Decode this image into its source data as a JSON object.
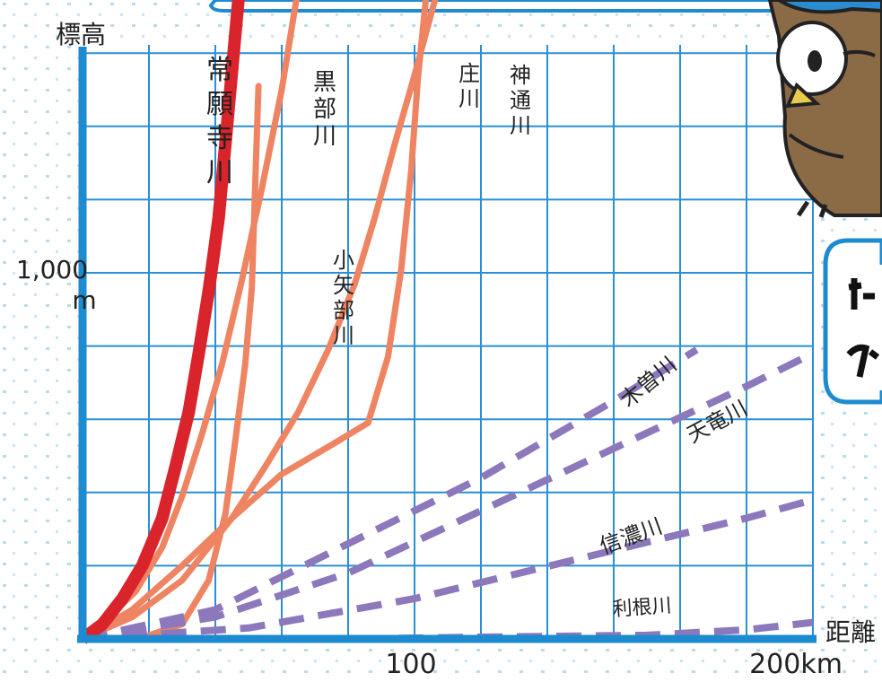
{
  "chart_data": {
    "type": "line",
    "ylabel": "標高",
    "xlabel": "距離",
    "xlim": [
      0,
      220
    ],
    "ylim": [
      0,
      2000
    ],
    "x_ticks": [
      {
        "value": 100,
        "label": "100"
      },
      {
        "value": 200,
        "label": "200km"
      }
    ],
    "y_ticks": [
      {
        "value": 1000,
        "label": "1,000",
        "unit": "m"
      }
    ],
    "grid": true,
    "series": [
      {
        "name": "常願寺川",
        "style": "solid-bold",
        "color": "#d9242b",
        "points": [
          [
            0,
            0
          ],
          [
            6,
            40
          ],
          [
            12,
            110
          ],
          [
            18,
            200
          ],
          [
            24,
            330
          ],
          [
            28,
            470
          ],
          [
            32,
            620
          ],
          [
            35,
            780
          ],
          [
            38,
            950
          ],
          [
            41,
            1150
          ],
          [
            43,
            1350
          ],
          [
            45,
            1550
          ],
          [
            47,
            1750
          ],
          [
            49,
            2050
          ]
        ]
      },
      {
        "name": "黒部川",
        "style": "solid",
        "color": "#ee8462",
        "points": [
          [
            0,
            0
          ],
          [
            8,
            60
          ],
          [
            16,
            130
          ],
          [
            24,
            250
          ],
          [
            30,
            390
          ],
          [
            36,
            560
          ],
          [
            42,
            750
          ],
          [
            48,
            980
          ],
          [
            54,
            1230
          ],
          [
            60,
            1500
          ],
          [
            65,
            1780
          ],
          [
            69,
            2050
          ]
        ]
      },
      {
        "name": "小矢部川",
        "style": "solid",
        "color": "#ee8462",
        "points": [
          [
            20,
            10
          ],
          [
            30,
            40
          ],
          [
            38,
            160
          ],
          [
            43,
            340
          ],
          [
            46,
            540
          ],
          [
            49,
            750
          ],
          [
            51,
            960
          ],
          [
            52,
            1240
          ],
          [
            53,
            1510
          ]
        ]
      },
      {
        "name": "庄川",
        "style": "solid",
        "color": "#ee8462",
        "points": [
          [
            0,
            0
          ],
          [
            15,
            80
          ],
          [
            30,
            200
          ],
          [
            45,
            330
          ],
          [
            60,
            450
          ],
          [
            75,
            530
          ],
          [
            86,
            590
          ],
          [
            92,
            770
          ],
          [
            96,
            1010
          ],
          [
            99,
            1280
          ],
          [
            101,
            1530
          ],
          [
            104,
            1800
          ],
          [
            106,
            2050
          ]
        ]
      },
      {
        "name": "神通川",
        "style": "solid",
        "color": "#ee8462",
        "points": [
          [
            0,
            0
          ],
          [
            15,
            60
          ],
          [
            30,
            160
          ],
          [
            45,
            330
          ],
          [
            55,
            470
          ],
          [
            65,
            620
          ],
          [
            74,
            790
          ],
          [
            82,
            970
          ],
          [
            88,
            1150
          ],
          [
            94,
            1350
          ],
          [
            100,
            1540
          ],
          [
            106,
            1740
          ],
          [
            112,
            1930
          ],
          [
            117,
            2050
          ]
        ]
      },
      {
        "name": "木曽川",
        "style": "dashed",
        "color": "#8c78bb",
        "points": [
          [
            0,
            0
          ],
          [
            40,
            80
          ],
          [
            80,
            260
          ],
          [
            120,
            440
          ],
          [
            160,
            650
          ],
          [
            185,
            790
          ]
        ]
      },
      {
        "name": "天竜川",
        "style": "dashed",
        "color": "#8c78bb",
        "points": [
          [
            0,
            0
          ],
          [
            40,
            60
          ],
          [
            80,
            180
          ],
          [
            120,
            350
          ],
          [
            160,
            520
          ],
          [
            200,
            690
          ],
          [
            220,
            780
          ]
        ]
      },
      {
        "name": "信濃川",
        "style": "dashed",
        "color": "#8c78bb",
        "points": [
          [
            0,
            0
          ],
          [
            50,
            30
          ],
          [
            100,
            110
          ],
          [
            150,
            220
          ],
          [
            200,
            330
          ],
          [
            220,
            380
          ]
        ]
      },
      {
        "name": "利根川",
        "style": "dashed",
        "color": "#8c78bb",
        "points": [
          [
            0,
            0
          ],
          [
            80,
            0
          ],
          [
            120,
            5
          ],
          [
            170,
            10
          ],
          [
            200,
            25
          ],
          [
            220,
            45
          ]
        ]
      }
    ]
  }
}
